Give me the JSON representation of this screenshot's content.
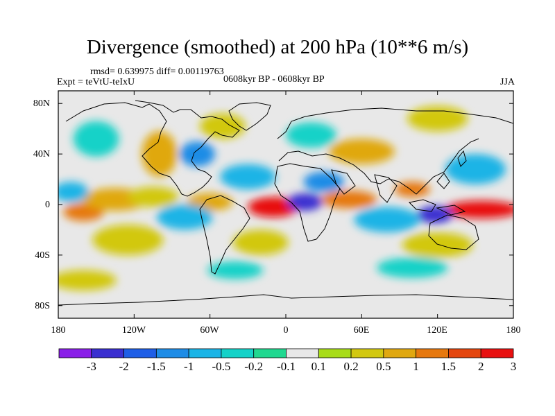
{
  "title": "Divergence (smoothed) at 200 hPa (10**6 m/s)",
  "stats": "rmsd= 0.639975 diff= 0.00119763",
  "experiment": "Expt = teVtU-teIxU",
  "period": "0608kyr BP - 0608kyr BP",
  "season": "JJA",
  "lat_ticks": [
    "80N",
    "40N",
    "0",
    "40S",
    "80S"
  ],
  "lon_ticks": [
    "180",
    "120W",
    "60W",
    "0",
    "60E",
    "120E",
    "180"
  ],
  "colorbar": {
    "labels": [
      "-3",
      "-2",
      "-1.5",
      "-1",
      "-0.5",
      "-0.2",
      "-0.1",
      "0.1",
      "0.2",
      "0.5",
      "1",
      "1.5",
      "2",
      "3"
    ],
    "colors": [
      "#8a1fe8",
      "#3a2fd0",
      "#1e5ee6",
      "#1e8ce6",
      "#1ab4e6",
      "#14d2c8",
      "#20d890",
      "#e8e8e8",
      "#a8dc18",
      "#d2c810",
      "#e0a810",
      "#e6780e",
      "#e4460e",
      "#e81010"
    ]
  },
  "map": {
    "background_color": "#e8e8e8",
    "blobs": [
      {
        "lon": -10,
        "lat": -2,
        "rx": 20,
        "ry": 8,
        "level": 13
      },
      {
        "lon": 155,
        "lat": -4,
        "rx": 30,
        "ry": 7,
        "level": 13
      },
      {
        "lon": -160,
        "lat": -6,
        "rx": 16,
        "ry": 7,
        "level": 11
      },
      {
        "lon": -135,
        "lat": 4,
        "rx": 26,
        "ry": 9,
        "level": 10
      },
      {
        "lon": -105,
        "lat": 6,
        "rx": 20,
        "ry": 8,
        "level": 9
      },
      {
        "lon": -60,
        "lat": 2,
        "rx": 18,
        "ry": 7,
        "level": 10
      },
      {
        "lon": 50,
        "lat": 4,
        "rx": 22,
        "ry": 7,
        "level": 11
      },
      {
        "lon": 100,
        "lat": 12,
        "rx": 14,
        "ry": 6,
        "level": 11
      },
      {
        "lon": 15,
        "lat": 2,
        "rx": 14,
        "ry": 7,
        "level": 1
      },
      {
        "lon": 118,
        "lat": -8,
        "rx": 14,
        "ry": 7,
        "level": 1
      },
      {
        "lon": 30,
        "lat": 18,
        "rx": 16,
        "ry": 8,
        "level": 3
      },
      {
        "lon": -170,
        "lat": 10,
        "rx": 14,
        "ry": 8,
        "level": 4
      },
      {
        "lon": -80,
        "lat": -10,
        "rx": 22,
        "ry": 10,
        "level": 4
      },
      {
        "lon": 80,
        "lat": -12,
        "rx": 26,
        "ry": 10,
        "level": 4
      },
      {
        "lon": -30,
        "lat": 22,
        "rx": 22,
        "ry": 10,
        "level": 4
      },
      {
        "lon": 150,
        "lat": 28,
        "rx": 24,
        "ry": 12,
        "level": 4
      },
      {
        "lon": -125,
        "lat": -28,
        "rx": 28,
        "ry": 12,
        "level": 9
      },
      {
        "lon": -20,
        "lat": -30,
        "rx": 22,
        "ry": 10,
        "level": 9
      },
      {
        "lon": 120,
        "lat": -32,
        "rx": 28,
        "ry": 10,
        "level": 9
      },
      {
        "lon": -100,
        "lat": 40,
        "rx": 14,
        "ry": 18,
        "level": 10
      },
      {
        "lon": 60,
        "lat": 42,
        "rx": 26,
        "ry": 10,
        "level": 10
      },
      {
        "lon": -50,
        "lat": 62,
        "rx": 18,
        "ry": 10,
        "level": 9
      },
      {
        "lon": 120,
        "lat": 68,
        "rx": 24,
        "ry": 10,
        "level": 9
      },
      {
        "lon": -150,
        "lat": 52,
        "rx": 18,
        "ry": 14,
        "level": 5
      },
      {
        "lon": 20,
        "lat": 55,
        "rx": 20,
        "ry": 10,
        "level": 5
      },
      {
        "lon": -70,
        "lat": 40,
        "rx": 14,
        "ry": 10,
        "level": 3
      },
      {
        "lon": 100,
        "lat": -50,
        "rx": 28,
        "ry": 8,
        "level": 5
      },
      {
        "lon": -40,
        "lat": -52,
        "rx": 22,
        "ry": 7,
        "level": 5
      },
      {
        "lon": -160,
        "lat": -60,
        "rx": 26,
        "ry": 8,
        "level": 9
      }
    ]
  }
}
